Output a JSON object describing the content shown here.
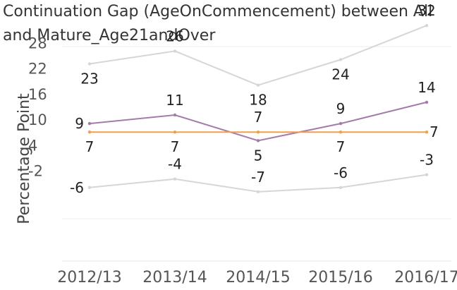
{
  "chart_data": {
    "type": "line",
    "title": "Continuation Gap (AgeOnCommencement) between  All and Mature_Age21andOver",
    "xlabel": "",
    "ylabel": "Percentage Point",
    "categories": [
      "2012/13",
      "2013/14",
      "2014/15",
      "2015/16",
      "2016/17"
    ],
    "yticks": [
      28,
      22,
      16,
      10,
      4,
      -2
    ],
    "series": [
      {
        "values": [
          23,
          26,
          18,
          24,
          32
        ],
        "color": "#d6d6d6",
        "labels": [
          "23",
          "26",
          "18",
          "24",
          "32"
        ],
        "label_pos": [
          "below",
          "above",
          "below",
          "below",
          "above"
        ]
      },
      {
        "values": [
          9,
          11,
          5,
          9,
          14
        ],
        "color": "#a57bab",
        "labels": [
          "9",
          "11",
          "5",
          "9",
          "14"
        ],
        "label_pos": [
          "at",
          "above",
          "below",
          "above",
          "above"
        ]
      },
      {
        "values": [
          7,
          7,
          7,
          7,
          7
        ],
        "color": "#f0a04c",
        "labels": [
          "7",
          "7",
          "7",
          "7",
          "7"
        ],
        "label_pos": [
          "below",
          "below",
          "above",
          "below",
          "at"
        ]
      },
      {
        "values": [
          -6,
          -4,
          -7,
          -6,
          -3
        ],
        "color": "#d6d6d6",
        "labels": [
          "-6",
          "-4",
          "-7",
          "-6",
          "-3"
        ],
        "label_pos": [
          "at",
          "above",
          "above",
          "above",
          "above"
        ]
      }
    ],
    "grid": false,
    "legend": "none"
  }
}
